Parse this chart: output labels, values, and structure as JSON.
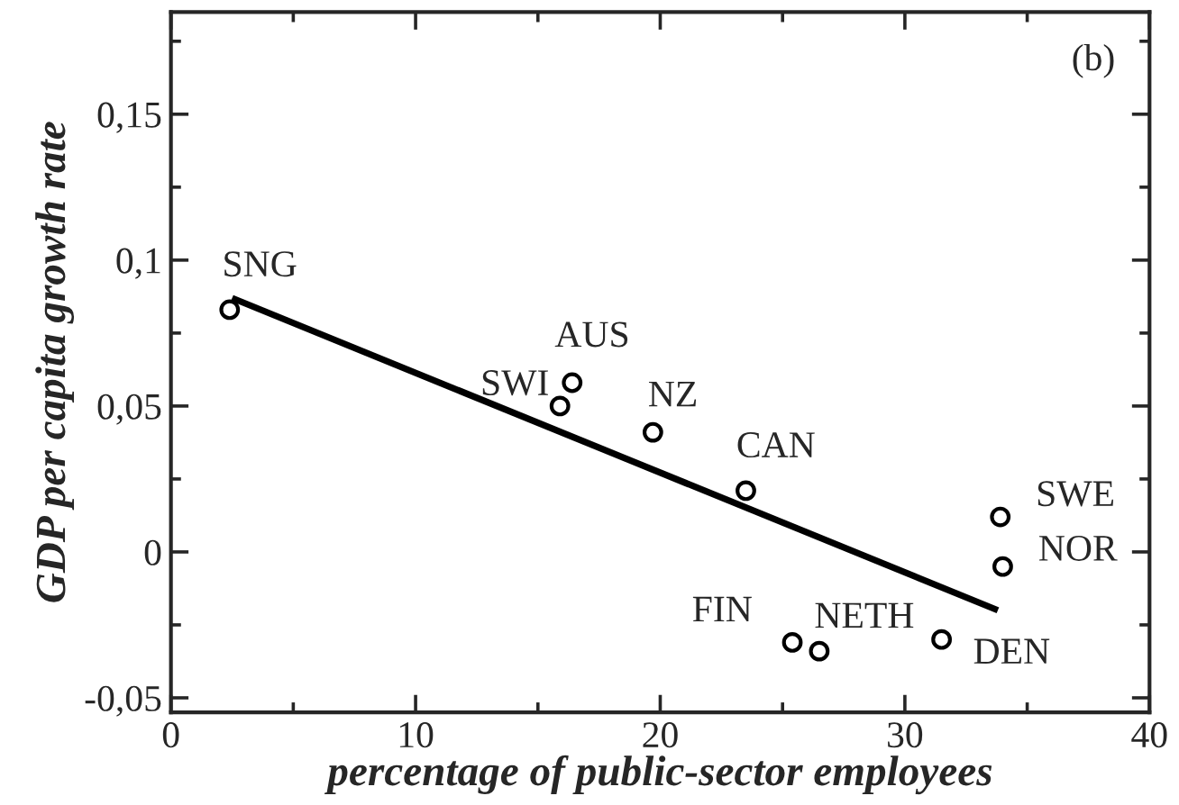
{
  "chart_data": {
    "type": "scatter",
    "xlabel": "percentage of public-sector employees",
    "ylabel": "GDP per capita growth rate",
    "xlim": [
      0,
      40
    ],
    "ylim": [
      -0.055,
      0.185
    ],
    "xticks": [
      0,
      10,
      20,
      30,
      40
    ],
    "yticks": [
      {
        "value": -0.05,
        "label": "-0,05"
      },
      {
        "value": 0,
        "label": "0"
      },
      {
        "value": 0.05,
        "label": "0,05"
      },
      {
        "value": 0.1,
        "label": "0,1"
      },
      {
        "value": 0.15,
        "label": "0,15"
      }
    ],
    "grid": false,
    "legend": false,
    "series": [
      {
        "marker": "circle",
        "color": "#000000",
        "x": [
          2.4,
          15.9,
          16.4,
          19.7,
          23.5,
          33.9,
          34.0,
          25.4,
          26.5,
          31.5
        ],
        "values": [
          0.083,
          0.05,
          0.058,
          0.041,
          0.021,
          0.012,
          -0.005,
          -0.031,
          -0.034,
          -0.03
        ]
      },
      {
        "type": "line",
        "marker": "none",
        "color": "#000000",
        "x": [
          2.5,
          33.8
        ],
        "values": [
          0.087,
          -0.02
        ]
      }
    ],
    "annotations": [
      {
        "text": "SNG",
        "x": 2.4,
        "y": 0.083
      },
      {
        "text": "SWI",
        "x": 15.9,
        "y": 0.05
      },
      {
        "text": "AUS",
        "x": 16.4,
        "y": 0.058
      },
      {
        "text": "NZ",
        "x": 19.7,
        "y": 0.041
      },
      {
        "text": "CAN",
        "x": 23.5,
        "y": 0.021
      },
      {
        "text": "SWE",
        "x": 33.9,
        "y": 0.012
      },
      {
        "text": "NOR",
        "x": 34.0,
        "y": -0.005
      },
      {
        "text": "FIN",
        "x": 25.4,
        "y": -0.031
      },
      {
        "text": "NETH",
        "x": 26.5,
        "y": -0.034
      },
      {
        "text": "DEN",
        "x": 31.5,
        "y": -0.03
      },
      "(b)"
    ]
  }
}
